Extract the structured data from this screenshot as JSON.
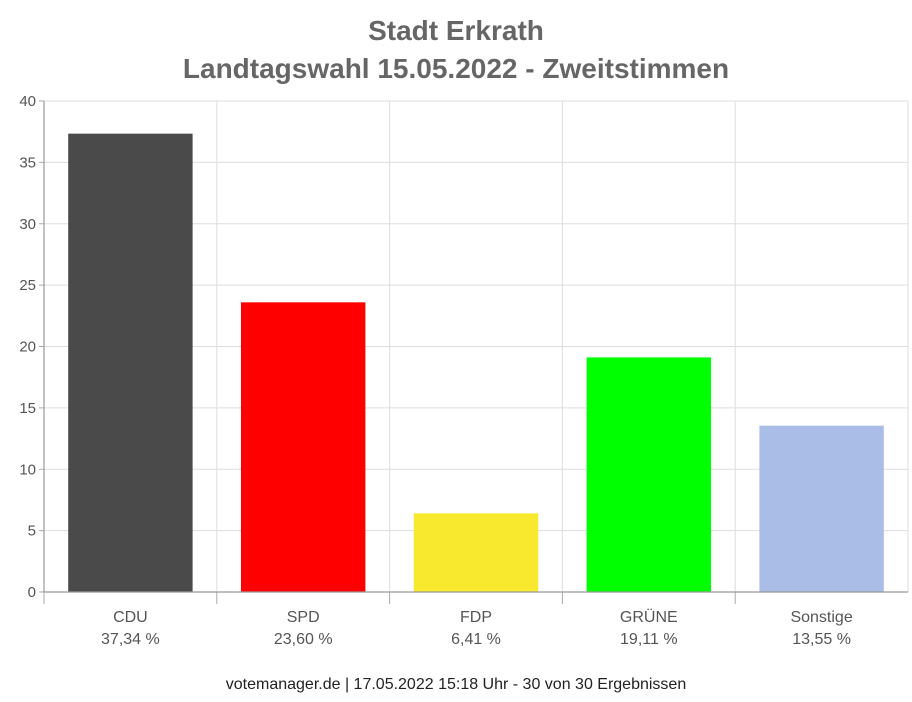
{
  "title_line1": "Stadt Erkrath",
  "title_line2": "Landtagswahl 15.05.2022  - Zweitstimmen",
  "footer": "votemanager.de | 17.05.2022 15:18 Uhr - 30 von 30 Ergebnissen",
  "chart_data": {
    "type": "bar",
    "categories": [
      "CDU",
      "SPD",
      "FDP",
      "GRÜNE",
      "Sonstige"
    ],
    "values": [
      37.34,
      23.6,
      6.41,
      19.11,
      13.55
    ],
    "value_labels": [
      "37,34 %",
      "23,60 %",
      "6,41 %",
      "19,11 %",
      "13,55 %"
    ],
    "colors": [
      "#4a4a4a",
      "#ff0000",
      "#f8e92e",
      "#00ff00",
      "#a9bde6"
    ],
    "ylim": [
      0,
      40
    ],
    "yticks": [
      0,
      5,
      10,
      15,
      20,
      25,
      30,
      35,
      40
    ],
    "grid": true,
    "xlabel": "",
    "ylabel": ""
  }
}
